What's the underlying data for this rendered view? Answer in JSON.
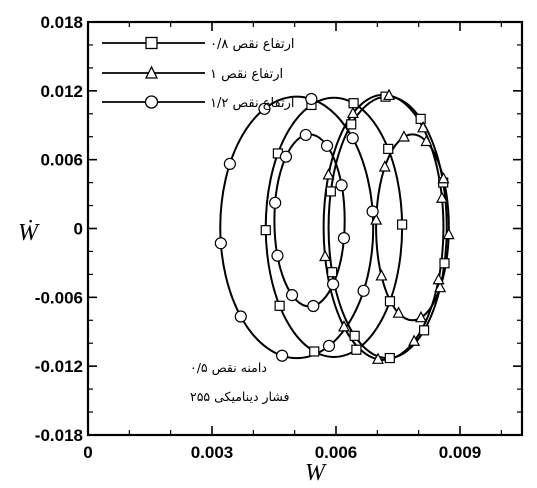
{
  "chart_data": {
    "type": "line",
    "xlabel": "W",
    "ylabel": "Ẇ",
    "xlim": [
      0,
      0.0105
    ],
    "ylim": [
      -0.018,
      0.018
    ],
    "x_ticks": [
      "0",
      "0.003",
      "0.006",
      "0.009"
    ],
    "x_tick_values": [
      0,
      0.003,
      0.006,
      0.009
    ],
    "y_ticks": [
      "0.018",
      "0.012",
      "0.006",
      "0",
      "-0.006",
      "-0.012",
      "-0.018"
    ],
    "y_tick_values": [
      0.018,
      0.012,
      0.006,
      0,
      -0.006,
      -0.012,
      -0.018
    ],
    "legend_position": "top-left",
    "series": [
      {
        "name": "ارتفاع نقص ۰/۸",
        "marker": "square",
        "loops": [
          {
            "cx": 0.00725,
            "cy": 0.0001,
            "rx": 0.00143,
            "ry": 0.0114
          },
          {
            "cx": 0.00595,
            "cy": 0.0001,
            "rx": 0.00165,
            "ry": 0.0113
          }
        ]
      },
      {
        "name": "ارتفاع نقص ۱",
        "marker": "triangle",
        "loops": [
          {
            "cx": 0.00785,
            "cy": 0.0001,
            "rx": 0.00088,
            "ry": 0.0081
          },
          {
            "cx": 0.00715,
            "cy": 0.0001,
            "rx": 0.00145,
            "ry": 0.01155
          }
        ]
      },
      {
        "name": "ارتفاع نقص ۱/۲",
        "marker": "circle",
        "loops": [
          {
            "cx": 0.00505,
            "cy": 0.0001,
            "rx": 0.00185,
            "ry": 0.0114
          },
          {
            "cx": 0.00536,
            "cy": 0.0007,
            "rx": 0.00085,
            "ry": 0.0075
          }
        ]
      }
    ],
    "annotations": [
      "دامنه نقص ۰/۵",
      "فشار دینامیکی ۲۵۵"
    ]
  }
}
